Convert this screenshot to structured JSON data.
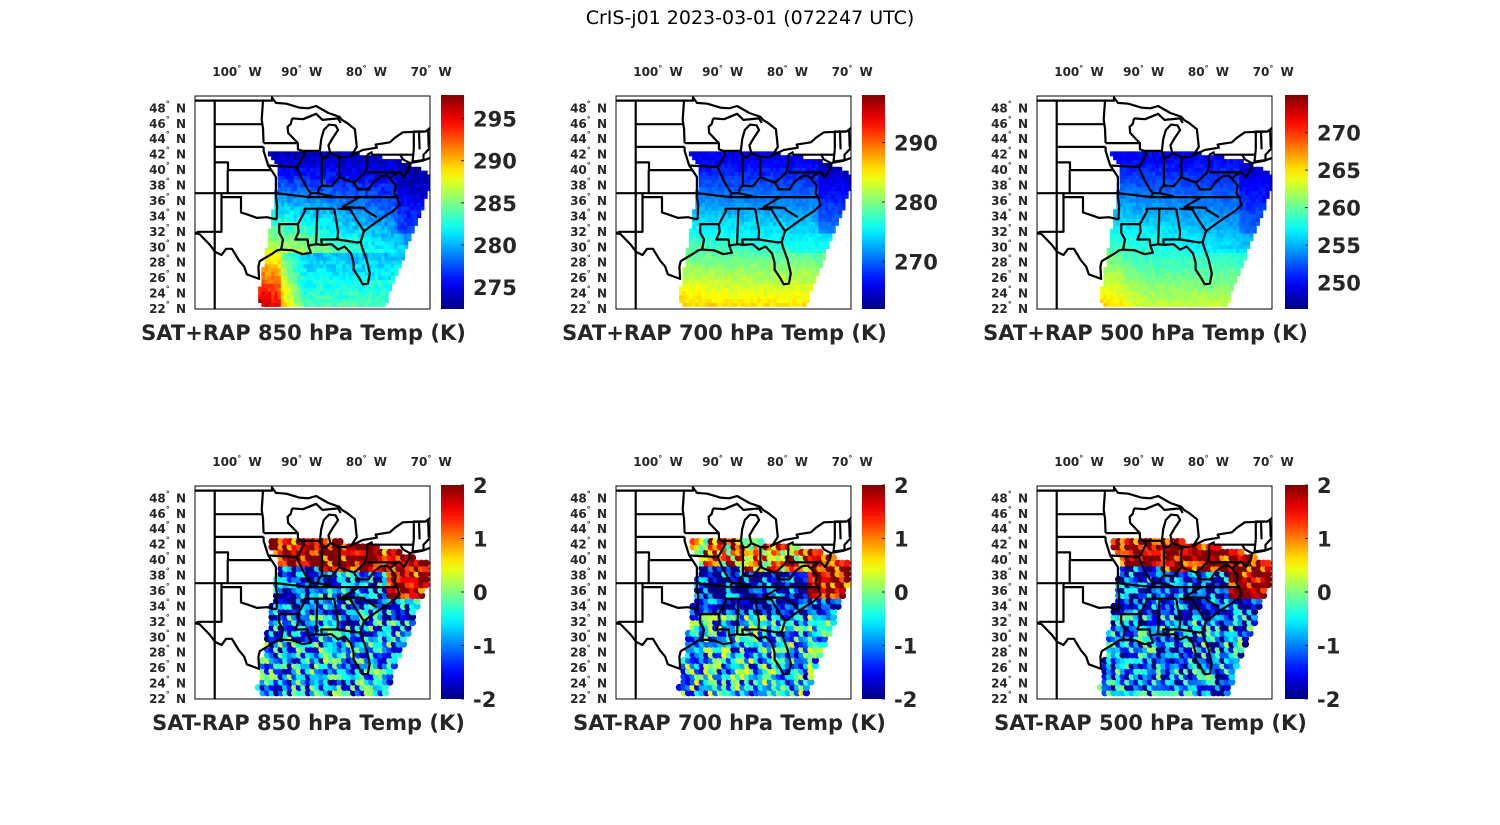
{
  "figure": {
    "title": "CrIS-j01 2023-03-01 (072247 UTC)"
  },
  "colors": {
    "axis": "#000000",
    "text": "#262626",
    "colormap": "jet"
  },
  "chart_data": [
    {
      "type": "heatmap",
      "title": "SAT+RAP 850 hPa Temp (K)",
      "x_ticks": [
        "100",
        "90",
        "80",
        "70"
      ],
      "x_tick_values": [
        -100,
        -90,
        -80,
        -70
      ],
      "x_unit": "W",
      "y_ticks": [
        "48",
        "46",
        "44",
        "42",
        "40",
        "38",
        "36",
        "34",
        "32",
        "30",
        "28",
        "26",
        "24",
        "22"
      ],
      "y_tick_values": [
        48,
        46,
        44,
        42,
        40,
        38,
        36,
        34,
        32,
        30,
        28,
        26,
        24,
        22
      ],
      "y_unit": "N",
      "colorbar": {
        "ticks": [
          "295",
          "290",
          "285",
          "280",
          "275"
        ],
        "tick_values": [
          295,
          290,
          285,
          280,
          275
        ],
        "range": [
          272.4,
          297.8
        ]
      },
      "field": {
        "north": 274,
        "south_west": 297,
        "south_east": 283,
        "gulf": 284
      }
    },
    {
      "type": "heatmap",
      "title": "SAT+RAP 700 hPa Temp (K)",
      "x_ticks": [
        "100",
        "90",
        "80",
        "70"
      ],
      "x_tick_values": [
        -100,
        -90,
        -80,
        -70
      ],
      "x_unit": "W",
      "y_ticks": [
        "48",
        "46",
        "44",
        "42",
        "40",
        "38",
        "36",
        "34",
        "32",
        "30",
        "28",
        "26",
        "24",
        "22"
      ],
      "y_tick_values": [
        48,
        46,
        44,
        42,
        40,
        38,
        36,
        34,
        32,
        30,
        28,
        26,
        24,
        22
      ],
      "y_unit": "N",
      "colorbar": {
        "ticks": [
          "290",
          "280",
          "270"
        ],
        "tick_values": [
          290,
          280,
          270
        ],
        "range": [
          262,
          298
        ]
      },
      "field": {
        "north": 266,
        "south_west": 287,
        "south_east": 282,
        "gulf": 286
      }
    },
    {
      "type": "heatmap",
      "title": "SAT+RAP 500 hPa Temp (K)",
      "x_ticks": [
        "100",
        "90",
        "80",
        "70"
      ],
      "x_tick_values": [
        -100,
        -90,
        -80,
        -70
      ],
      "x_unit": "W",
      "y_ticks": [
        "48",
        "46",
        "44",
        "42",
        "40",
        "38",
        "36",
        "34",
        "32",
        "30",
        "28",
        "26",
        "24",
        "22"
      ],
      "y_tick_values": [
        48,
        46,
        44,
        42,
        40,
        38,
        36,
        34,
        32,
        30,
        28,
        26,
        24,
        22
      ],
      "y_unit": "N",
      "colorbar": {
        "ticks": [
          "270",
          "265",
          "260",
          "255",
          "250"
        ],
        "tick_values": [
          270,
          265,
          260,
          255,
          250
        ],
        "range": [
          246.5,
          275
        ]
      },
      "field": {
        "north": 250,
        "south_west": 266,
        "south_east": 259,
        "gulf": 263
      }
    },
    {
      "type": "heatmap",
      "title": "SAT-RAP 850 hPa Temp (K)",
      "x_ticks": [
        "100",
        "90",
        "80",
        "70"
      ],
      "x_tick_values": [
        -100,
        -90,
        -80,
        -70
      ],
      "x_unit": "W",
      "y_ticks": [
        "48",
        "46",
        "44",
        "42",
        "40",
        "38",
        "36",
        "34",
        "32",
        "30",
        "28",
        "26",
        "24",
        "22"
      ],
      "y_tick_values": [
        48,
        46,
        44,
        42,
        40,
        38,
        36,
        34,
        32,
        30,
        28,
        26,
        24,
        22
      ],
      "y_unit": "N",
      "colorbar": {
        "ticks": [
          "2",
          "1",
          "0",
          "-1",
          "-2"
        ],
        "tick_values": [
          2,
          1,
          0,
          -1,
          -2
        ],
        "range": [
          -2,
          2
        ]
      },
      "field": {
        "north": 1.8,
        "mid": -1.2,
        "south": -0.9,
        "east": 1.9
      }
    },
    {
      "type": "heatmap",
      "title": "SAT-RAP 700 hPa Temp (K)",
      "x_ticks": [
        "100",
        "90",
        "80",
        "70"
      ],
      "x_tick_values": [
        -100,
        -90,
        -80,
        -70
      ],
      "x_unit": "W",
      "y_ticks": [
        "48",
        "46",
        "44",
        "42",
        "40",
        "38",
        "36",
        "34",
        "32",
        "30",
        "28",
        "26",
        "24",
        "22"
      ],
      "y_tick_values": [
        48,
        46,
        44,
        42,
        40,
        38,
        36,
        34,
        32,
        30,
        28,
        26,
        24,
        22
      ],
      "y_unit": "N",
      "colorbar": {
        "ticks": [
          "2",
          "1",
          "0",
          "-1",
          "-2"
        ],
        "tick_values": [
          2,
          1,
          0,
          -1,
          -2
        ],
        "range": [
          -2,
          2
        ]
      },
      "field": {
        "north": 0.9,
        "mid": -1.6,
        "south": -0.6,
        "east": 1.8
      }
    },
    {
      "type": "heatmap",
      "title": "SAT-RAP 500 hPa Temp (K)",
      "x_ticks": [
        "100",
        "90",
        "80",
        "70"
      ],
      "x_tick_values": [
        -100,
        -90,
        -80,
        -70
      ],
      "x_unit": "W",
      "y_ticks": [
        "48",
        "46",
        "44",
        "42",
        "40",
        "38",
        "36",
        "34",
        "32",
        "30",
        "28",
        "26",
        "24",
        "22"
      ],
      "y_tick_values": [
        48,
        46,
        44,
        42,
        40,
        38,
        36,
        34,
        32,
        30,
        28,
        26,
        24,
        22
      ],
      "y_unit": "N",
      "colorbar": {
        "ticks": [
          "2",
          "1",
          "0",
          "-1",
          "-2"
        ],
        "tick_values": [
          2,
          1,
          0,
          -1,
          -2
        ],
        "range": [
          -2,
          2
        ]
      },
      "field": {
        "north": 1.9,
        "mid": -1.5,
        "south": -1.0,
        "east": 1.9
      }
    }
  ]
}
